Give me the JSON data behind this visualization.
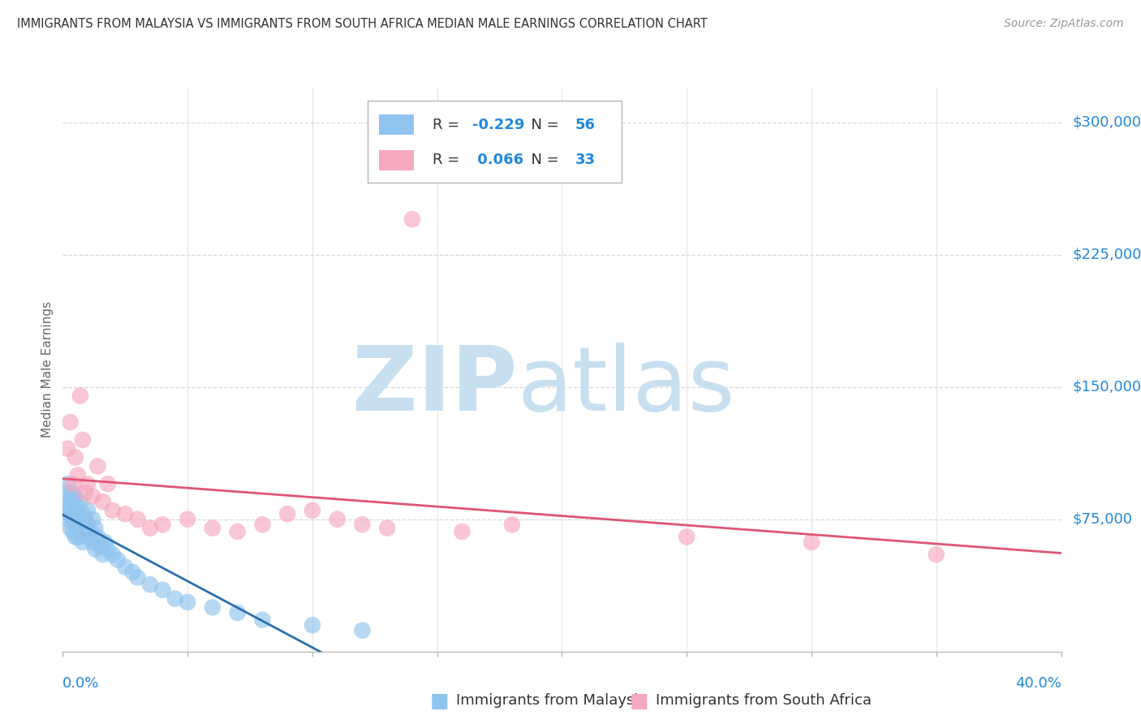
{
  "title": "IMMIGRANTS FROM MALAYSIA VS IMMIGRANTS FROM SOUTH AFRICA MEDIAN MALE EARNINGS CORRELATION CHART",
  "source": "Source: ZipAtlas.com",
  "ylabel": "Median Male Earnings",
  "y_tick_labels": [
    "$75,000",
    "$150,000",
    "$225,000",
    "$300,000"
  ],
  "y_tick_values": [
    75000,
    150000,
    225000,
    300000
  ],
  "xlim": [
    0.0,
    0.4
  ],
  "ylim": [
    0,
    320000
  ],
  "malaysia_R": -0.229,
  "malaysia_N": 56,
  "southafrica_R": 0.066,
  "southafrica_N": 33,
  "legend_label_malaysia": "Immigrants from Malaysia",
  "legend_label_southafrica": "Immigrants from South Africa",
  "malaysia_color": "#90C4EE",
  "southafrica_color": "#F5A8BE",
  "malaysia_line_color": "#2c6fad",
  "southafrica_line_color": "#e05575",
  "bg_color": "#ffffff",
  "grid_color": "#d8d8d8",
  "title_color": "#333333",
  "ylabel_color": "#666666",
  "tick_color": "#2288dd",
  "legend_text_color": "#333333",
  "watermark_zip_color": "#c8dff0",
  "watermark_atlas_color": "#c8dff0",
  "malaysia_x": [
    0.001,
    0.001,
    0.002,
    0.002,
    0.002,
    0.003,
    0.003,
    0.003,
    0.003,
    0.004,
    0.004,
    0.004,
    0.004,
    0.005,
    0.005,
    0.005,
    0.005,
    0.006,
    0.006,
    0.006,
    0.006,
    0.007,
    0.007,
    0.007,
    0.008,
    0.008,
    0.008,
    0.009,
    0.009,
    0.01,
    0.01,
    0.01,
    0.011,
    0.012,
    0.012,
    0.013,
    0.013,
    0.014,
    0.015,
    0.016,
    0.017,
    0.018,
    0.02,
    0.022,
    0.025,
    0.028,
    0.03,
    0.035,
    0.04,
    0.045,
    0.05,
    0.06,
    0.07,
    0.08,
    0.1,
    0.12
  ],
  "malaysia_y": [
    90000,
    80000,
    85000,
    75000,
    95000,
    88000,
    78000,
    70000,
    82000,
    85000,
    75000,
    68000,
    90000,
    80000,
    72000,
    65000,
    88000,
    82000,
    70000,
    78000,
    65000,
    75000,
    85000,
    72000,
    68000,
    78000,
    62000,
    75000,
    70000,
    80000,
    65000,
    72000,
    68000,
    75000,
    62000,
    70000,
    58000,
    65000,
    60000,
    55000,
    62000,
    58000,
    55000,
    52000,
    48000,
    45000,
    42000,
    38000,
    35000,
    30000,
    28000,
    25000,
    22000,
    18000,
    15000,
    12000
  ],
  "southafrica_x": [
    0.002,
    0.003,
    0.004,
    0.005,
    0.006,
    0.007,
    0.008,
    0.009,
    0.01,
    0.012,
    0.014,
    0.016,
    0.018,
    0.02,
    0.025,
    0.03,
    0.035,
    0.04,
    0.05,
    0.06,
    0.07,
    0.08,
    0.09,
    0.1,
    0.11,
    0.12,
    0.13,
    0.14,
    0.16,
    0.18,
    0.25,
    0.3,
    0.35
  ],
  "southafrica_y": [
    115000,
    130000,
    95000,
    110000,
    100000,
    145000,
    120000,
    90000,
    95000,
    88000,
    105000,
    85000,
    95000,
    80000,
    78000,
    75000,
    70000,
    72000,
    75000,
    70000,
    68000,
    72000,
    78000,
    80000,
    75000,
    72000,
    70000,
    245000,
    68000,
    72000,
    65000,
    62000,
    55000
  ]
}
